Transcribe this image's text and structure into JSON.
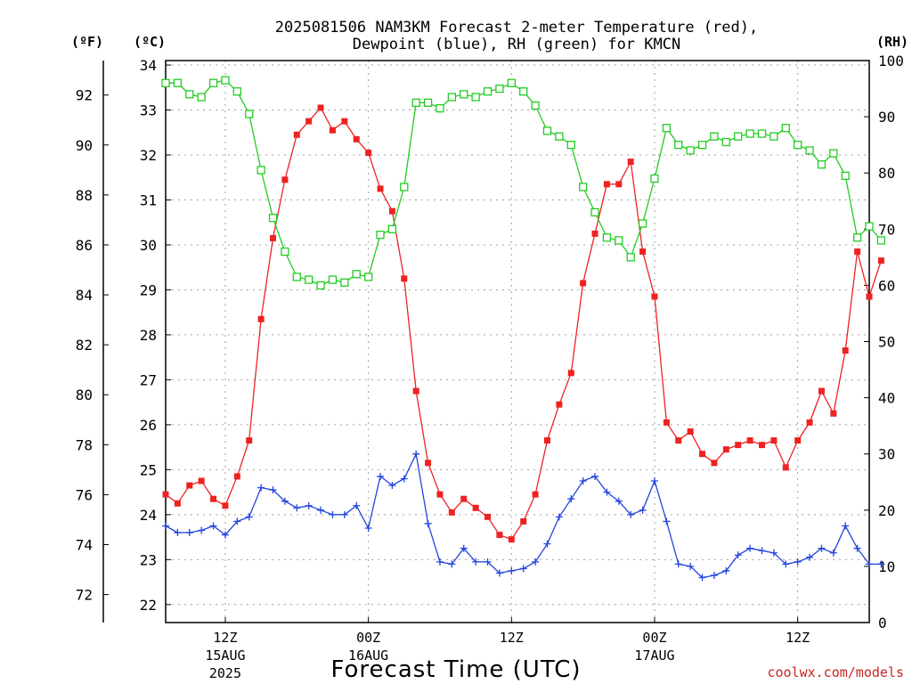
{
  "chart_data": {
    "type": "line",
    "title": "2025081506 NAM3KM Forecast 2-meter Temperature (red),",
    "title_line2": "Dewpoint (blue), RH (green) for KMCN",
    "units": {
      "fahrenheit": "(ºF)",
      "celsius": "(ºC)",
      "rh": "(RH)"
    },
    "xlabel": "Forecast Time (UTC)",
    "credit": "coolwx.com/models",
    "credit_color": "#cc2222",
    "grid": true,
    "ylim_celsius": [
      21.6,
      34.1
    ],
    "ylim_rh": [
      0,
      100
    ],
    "x_start_hour": 7,
    "x_end_hour": 66,
    "x_ticks": [
      {
        "hour": 12,
        "line1": "12Z",
        "line2": "15AUG",
        "line3": "2025"
      },
      {
        "hour": 24,
        "line1": "00Z",
        "line2": "16AUG",
        "line3": ""
      },
      {
        "hour": 36,
        "line1": "12Z",
        "line2": "",
        "line3": ""
      },
      {
        "hour": 48,
        "line1": "00Z",
        "line2": "17AUG",
        "line3": ""
      },
      {
        "hour": 60,
        "line1": "12Z",
        "line2": "",
        "line3": ""
      }
    ],
    "y_ticks_fahrenheit": [
      72,
      74,
      76,
      78,
      80,
      82,
      84,
      86,
      88,
      90,
      92
    ],
    "y_ticks_celsius": [
      22,
      23,
      24,
      25,
      26,
      27,
      28,
      29,
      30,
      31,
      32,
      33,
      34
    ],
    "y_ticks_rh": [
      0,
      10,
      20,
      30,
      40,
      50,
      60,
      70,
      80,
      90,
      100
    ],
    "series": [
      {
        "name": "Temperature",
        "color": "#ee2222",
        "marker": "filled-square",
        "axis": "celsius",
        "values": [
          24.45,
          24.25,
          24.65,
          24.75,
          24.35,
          24.2,
          24.85,
          25.65,
          28.35,
          30.15,
          31.45,
          32.45,
          32.75,
          33.05,
          32.55,
          32.75,
          32.35,
          32.05,
          31.25,
          30.75,
          29.25,
          26.75,
          25.15,
          24.45,
          24.05,
          24.35,
          24.15,
          23.95,
          23.55,
          23.45,
          23.85,
          24.45,
          25.65,
          26.45,
          27.15,
          29.15,
          30.25,
          31.35,
          31.35,
          31.85,
          29.85,
          28.85,
          26.05,
          25.65,
          25.85,
          25.35,
          25.15,
          25.45,
          25.55,
          25.65,
          25.55,
          25.65,
          25.05,
          25.65,
          26.05,
          26.75,
          26.25,
          27.65,
          29.85,
          28.85,
          29.65
        ]
      },
      {
        "name": "Dewpoint",
        "color": "#2244dd",
        "marker": "plus",
        "axis": "celsius",
        "values": [
          23.75,
          23.6,
          23.6,
          23.65,
          23.75,
          23.55,
          23.85,
          23.95,
          24.6,
          24.55,
          24.3,
          24.15,
          24.2,
          24.1,
          24.0,
          24.0,
          24.2,
          23.7,
          24.85,
          24.65,
          24.8,
          25.35,
          23.8,
          22.95,
          22.9,
          23.25,
          22.95,
          22.95,
          22.7,
          22.75,
          22.8,
          22.95,
          23.35,
          23.95,
          24.35,
          24.75,
          24.85,
          24.5,
          24.3,
          24.0,
          24.1,
          24.75,
          23.85,
          22.9,
          22.85,
          22.6,
          22.65,
          22.75,
          23.1,
          23.25,
          23.2,
          23.15,
          22.9,
          22.95,
          23.05,
          23.25,
          23.15,
          23.75,
          23.25,
          22.9,
          22.9
        ]
      },
      {
        "name": "RH",
        "color": "#22cc22",
        "marker": "open-square",
        "axis": "rh",
        "values": [
          96,
          96,
          94,
          93.5,
          96,
          96.5,
          94.5,
          90.5,
          80.5,
          72,
          66,
          61.5,
          61,
          60,
          61,
          60.5,
          62,
          61.5,
          69,
          70,
          77.5,
          92.5,
          92.5,
          91.5,
          93.5,
          94,
          93.5,
          94.5,
          95,
          96,
          94.5,
          92,
          87.5,
          86.5,
          85,
          77.5,
          73,
          68.5,
          68,
          65,
          71,
          79,
          88,
          85,
          84,
          85,
          86.5,
          85.5,
          86.5,
          87,
          87,
          86.5,
          88,
          85,
          84,
          81.5,
          83.5,
          79.5,
          68.5,
          70.5,
          68
        ]
      }
    ]
  }
}
